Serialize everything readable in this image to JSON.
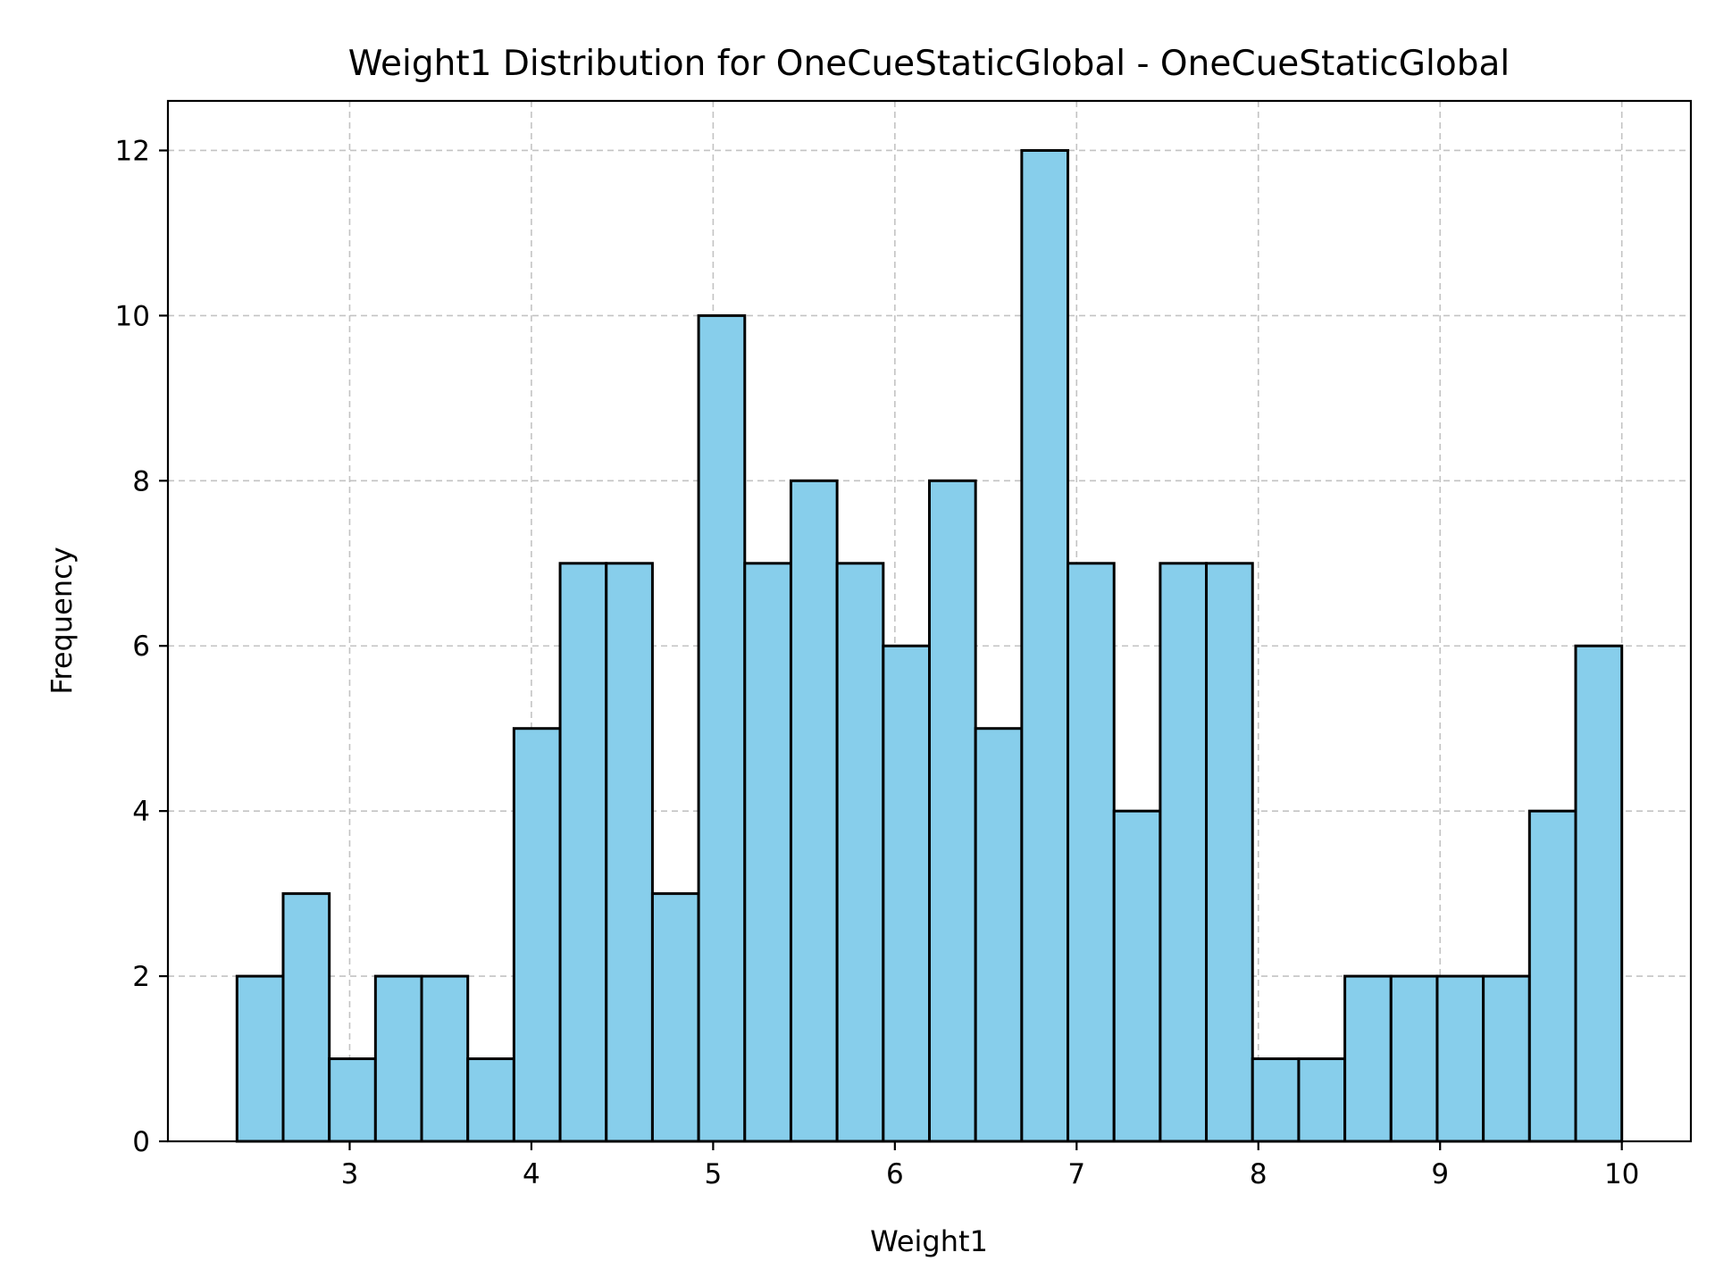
{
  "chart_data": {
    "type": "bar",
    "title": "Weight1 Distribution for OneCueStaticGlobal - OneCueStaticGlobal",
    "xlabel": "Weight1",
    "ylabel": "Frequency",
    "bar_color": "#87CEEB",
    "edge_color": "#000000",
    "grid": true,
    "xlim": [
      2.0,
      10.38
    ],
    "ylim": [
      0,
      12.6
    ],
    "xticks": [
      3,
      4,
      5,
      6,
      7,
      8,
      9,
      10
    ],
    "yticks": [
      0,
      2,
      4,
      6,
      8,
      10,
      12
    ],
    "bin_start": 2.38,
    "bin_width": 0.254,
    "values": [
      2,
      3,
      1,
      2,
      2,
      1,
      5,
      7,
      7,
      3,
      10,
      7,
      8,
      7,
      6,
      8,
      5,
      12,
      7,
      4,
      7,
      7,
      1,
      1,
      2,
      2,
      2,
      2,
      4,
      6
    ]
  }
}
